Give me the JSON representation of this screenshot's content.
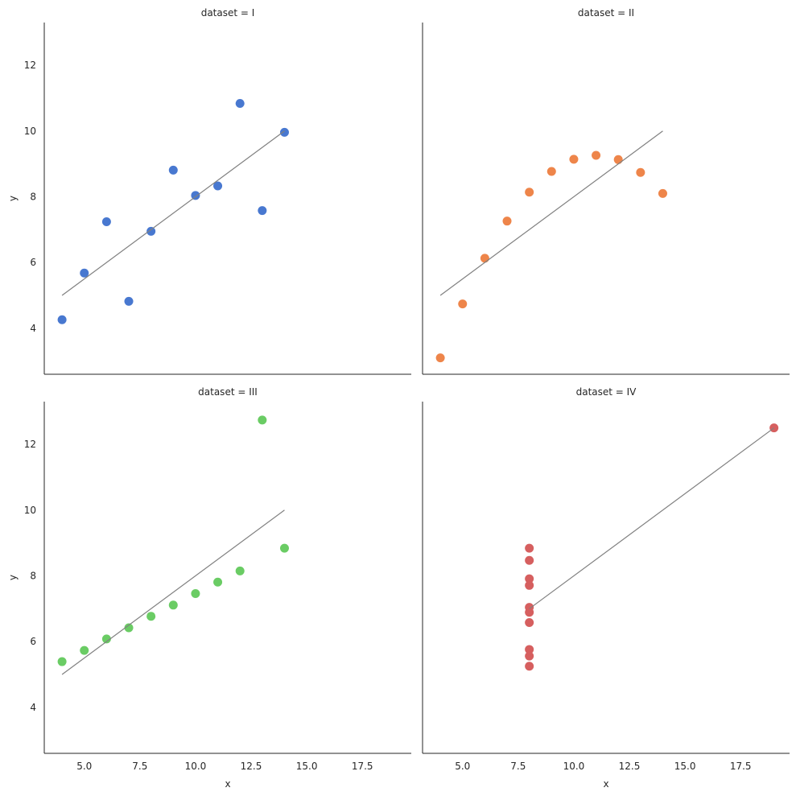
{
  "chart_data": {
    "type": "scatter",
    "x_label": "x",
    "y_label": "y",
    "xlim": [
      3.2,
      19.7
    ],
    "ylim": [
      2.6,
      13.3
    ],
    "x_ticks": [
      5.0,
      7.5,
      10.0,
      12.5,
      15.0,
      17.5
    ],
    "x_tick_labels": [
      "5.0",
      "7.5",
      "10.0",
      "12.5",
      "15.0",
      "17.5"
    ],
    "y_ticks": [
      4,
      6,
      8,
      10,
      12
    ],
    "y_tick_labels": [
      "4",
      "6",
      "8",
      "10",
      "12"
    ],
    "line_color": "#808080",
    "panels": [
      {
        "title": "dataset = I",
        "color": "#4878d0",
        "points": [
          [
            10,
            8.04
          ],
          [
            8,
            6.95
          ],
          [
            13,
            7.58
          ],
          [
            9,
            8.81
          ],
          [
            11,
            8.33
          ],
          [
            14,
            9.96
          ],
          [
            6,
            7.24
          ],
          [
            4,
            4.26
          ],
          [
            12,
            10.84
          ],
          [
            7,
            4.82
          ],
          [
            5,
            5.68
          ]
        ],
        "fit_line": [
          [
            4,
            5.0
          ],
          [
            14,
            10.0
          ]
        ]
      },
      {
        "title": "dataset = II",
        "color": "#ee854a",
        "points": [
          [
            10,
            9.14
          ],
          [
            8,
            8.14
          ],
          [
            13,
            8.74
          ],
          [
            9,
            8.77
          ],
          [
            11,
            9.26
          ],
          [
            14,
            8.1
          ],
          [
            6,
            6.13
          ],
          [
            4,
            3.1
          ],
          [
            12,
            9.13
          ],
          [
            7,
            7.26
          ],
          [
            5,
            4.74
          ]
        ],
        "fit_line": [
          [
            4,
            5.0
          ],
          [
            14,
            10.0
          ]
        ]
      },
      {
        "title": "dataset = III",
        "color": "#6acc64",
        "points": [
          [
            10,
            7.46
          ],
          [
            8,
            6.77
          ],
          [
            13,
            12.74
          ],
          [
            9,
            7.11
          ],
          [
            11,
            7.81
          ],
          [
            14,
            8.84
          ],
          [
            6,
            6.08
          ],
          [
            4,
            5.39
          ],
          [
            12,
            8.15
          ],
          [
            7,
            6.42
          ],
          [
            5,
            5.73
          ]
        ],
        "fit_line": [
          [
            4,
            5.0
          ],
          [
            14,
            10.0
          ]
        ]
      },
      {
        "title": "dataset = IV",
        "color": "#d65f5f",
        "points": [
          [
            8,
            6.58
          ],
          [
            8,
            5.76
          ],
          [
            8,
            7.71
          ],
          [
            8,
            8.84
          ],
          [
            8,
            8.47
          ],
          [
            8,
            7.04
          ],
          [
            8,
            5.25
          ],
          [
            19,
            12.5
          ],
          [
            8,
            5.56
          ],
          [
            8,
            7.91
          ],
          [
            8,
            6.89
          ]
        ],
        "fit_line": [
          [
            8,
            7.0
          ],
          [
            19,
            12.5
          ]
        ]
      }
    ]
  }
}
